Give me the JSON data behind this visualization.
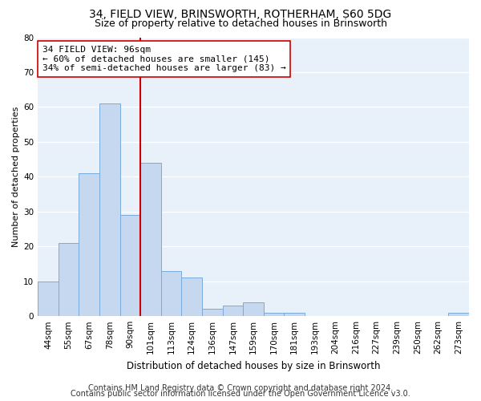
{
  "title1": "34, FIELD VIEW, BRINSWORTH, ROTHERHAM, S60 5DG",
  "title2": "Size of property relative to detached houses in Brinsworth",
  "xlabel": "Distribution of detached houses by size in Brinsworth",
  "ylabel": "Number of detached properties",
  "bar_labels": [
    "44sqm",
    "55sqm",
    "67sqm",
    "78sqm",
    "90sqm",
    "101sqm",
    "113sqm",
    "124sqm",
    "136sqm",
    "147sqm",
    "159sqm",
    "170sqm",
    "181sqm",
    "193sqm",
    "204sqm",
    "216sqm",
    "227sqm",
    "239sqm",
    "250sqm",
    "262sqm",
    "273sqm"
  ],
  "bar_values": [
    10,
    21,
    41,
    61,
    29,
    44,
    13,
    11,
    2,
    3,
    4,
    1,
    1,
    0,
    0,
    0,
    0,
    0,
    0,
    0,
    1
  ],
  "bar_color": "#c5d8f0",
  "bar_edge_color": "#7aabda",
  "vline_x": 4.5,
  "vline_color": "#cc0000",
  "annotation_line1": "34 FIELD VIEW: 96sqm",
  "annotation_line2": "← 60% of detached houses are smaller (145)",
  "annotation_line3": "34% of semi-detached houses are larger (83) →",
  "annotation_box_color": "white",
  "annotation_box_edge": "#cc0000",
  "ylim": [
    0,
    80
  ],
  "yticks": [
    0,
    10,
    20,
    30,
    40,
    50,
    60,
    70,
    80
  ],
  "footer1": "Contains HM Land Registry data © Crown copyright and database right 2024.",
  "footer2": "Contains public sector information licensed under the Open Government Licence v3.0.",
  "fig_bg_color": "#ffffff",
  "plot_bg_color": "#e8f0fa",
  "grid_color": "#ffffff",
  "title1_fontsize": 10,
  "title2_fontsize": 9,
  "xlabel_fontsize": 8.5,
  "ylabel_fontsize": 8,
  "tick_fontsize": 7.5,
  "annotation_fontsize": 8,
  "footer_fontsize": 7
}
